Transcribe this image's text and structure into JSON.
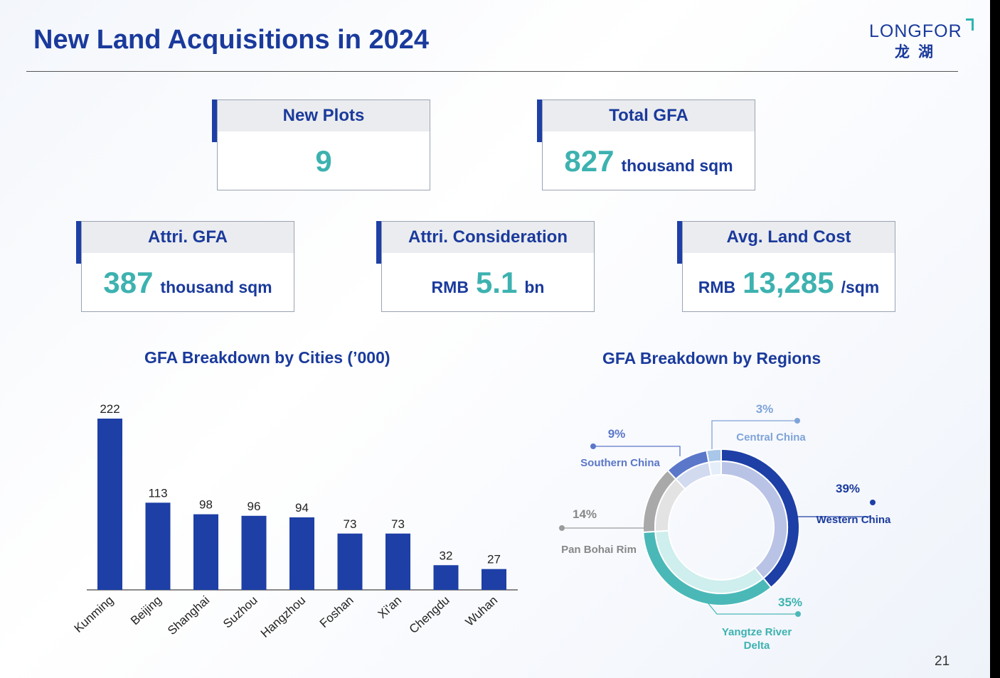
{
  "title": "New Land Acquisitions in 2024",
  "logo": {
    "en": "LONGFOR",
    "cn": "龙湖"
  },
  "cards": [
    {
      "head": "New Plots",
      "prefix": "",
      "value": "9",
      "unit": ""
    },
    {
      "head": "Total GFA",
      "prefix": "",
      "value": "827",
      "unit": "thousand sqm"
    },
    {
      "head": "Attri. GFA",
      "prefix": "",
      "value": "387",
      "unit": "thousand sqm"
    },
    {
      "head": "Attri. Consideration",
      "prefix": "RMB",
      "value": "5.1",
      "unit": "bn"
    },
    {
      "head": "Avg. Land Cost",
      "prefix": "RMB",
      "value": "13,285",
      "unit": "/sqm"
    }
  ],
  "chart_data": [
    {
      "type": "bar",
      "title": "GFA Breakdown by Cities (’000)",
      "categories": [
        "Kunming",
        "Beijing",
        "Shanghai",
        "Suzhou",
        "Hangzhou",
        "Foshan",
        "Xi'an",
        "Chengdu",
        "Wuhan"
      ],
      "values": [
        222,
        113,
        98,
        96,
        94,
        73,
        73,
        32,
        27
      ],
      "ylim": [
        0,
        222
      ],
      "color": "#1d3fa6"
    },
    {
      "type": "pie",
      "title": "GFA Breakdown by Regions",
      "slices": [
        {
          "label": "Western China",
          "pct": "39%",
          "value": 39,
          "color": "#1d3fa6",
          "inner": "#b9c3e6"
        },
        {
          "label": "Yangtze River Delta",
          "pct": "35%",
          "value": 35,
          "color": "#4bb8b8",
          "inner": "#cfeeee"
        },
        {
          "label": "Pan Bohai Rim",
          "pct": "14%",
          "value": 14,
          "color": "#a9a9a9",
          "inner": "#e3e3e3"
        },
        {
          "label": "Southern China",
          "pct": "9%",
          "value": 9,
          "color": "#5b77c9",
          "inner": "#d2daf0"
        },
        {
          "label": "Central China",
          "pct": "3%",
          "value": 3,
          "color": "#a9c7e8",
          "inner": "#e4eef9"
        }
      ]
    }
  ],
  "page_number": "21"
}
